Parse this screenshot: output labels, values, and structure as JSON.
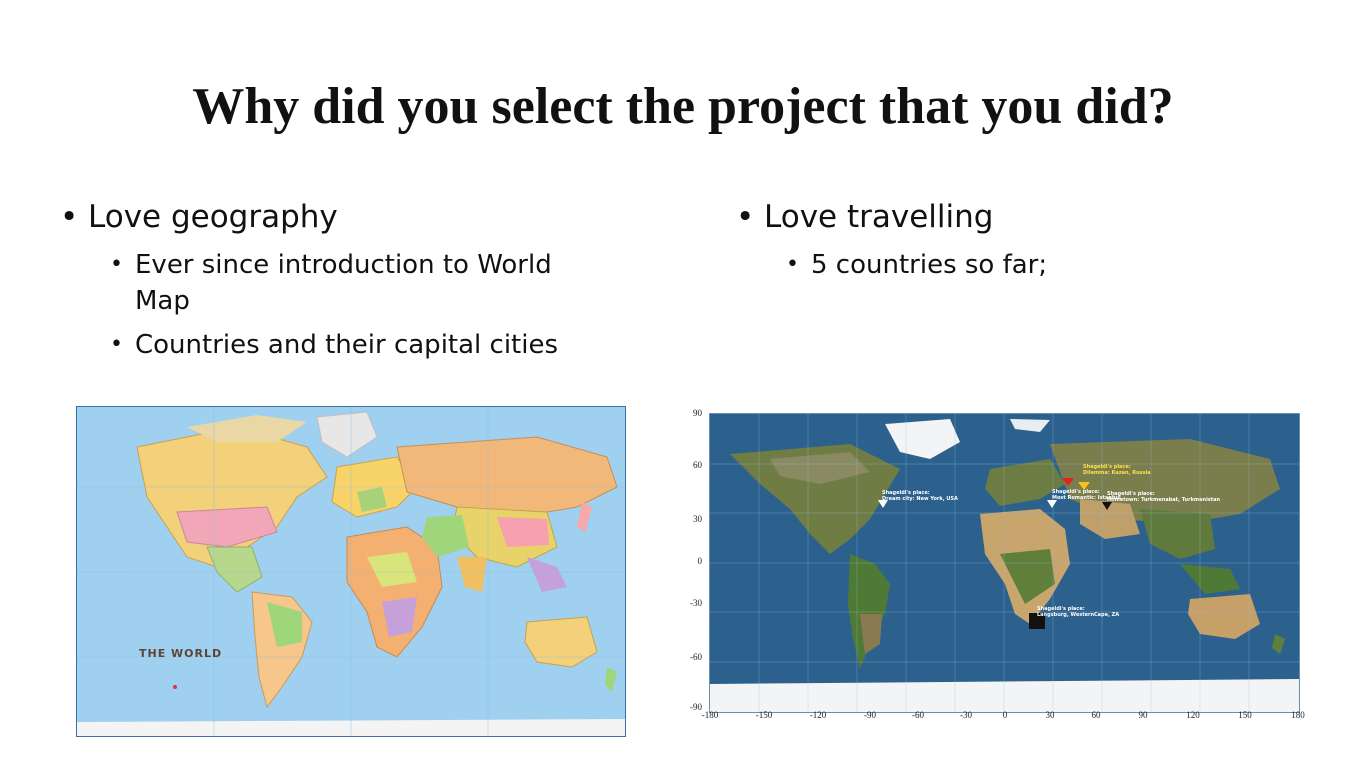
{
  "title": "Why did you select the project that you did?",
  "left_column": {
    "bullet": "Love geography",
    "sub_bullets": [
      "Ever since introduction to World Map",
      "Countries and their capital cities"
    ]
  },
  "right_column": {
    "bullet": "Love travelling",
    "sub_bullets": [
      "5 countries so far;"
    ]
  },
  "political_map": {
    "title": "THE WORLD",
    "icon": "world-political-map",
    "colors": {
      "ocean": "#9fd0ef",
      "accent": "#5b4636"
    }
  },
  "satellite_map": {
    "icon": "satellite-world-map",
    "y_ticks": [
      "90",
      "60",
      "30",
      "0",
      "-30",
      "-60",
      "-90"
    ],
    "x_ticks": [
      "-180",
      "-150",
      "-120",
      "-90",
      "-60",
      "-30",
      "0",
      "30",
      "60",
      "90",
      "120",
      "150",
      "180"
    ],
    "places": [
      {
        "line1": "Shageldi's place:",
        "line2": "Dream city: New York, USA"
      },
      {
        "line1": "Shageldi's place:",
        "line2": "Dilemma: Kazan, Russia"
      },
      {
        "line1": "Shageldi's place:",
        "line2": "Most Romantic: Istanbul"
      },
      {
        "line1": "Shageldi's place:",
        "line2": "Hometown: Turkmenabat, Turkmenistan"
      },
      {
        "line1": "Shageldi's place:",
        "line2": "Langsburg, WesternCape, ZA"
      }
    ],
    "colors": {
      "ocean": "#2a5b87",
      "land": "#6f7d45",
      "ice": "#f2f4f6",
      "grid": "#9cc0dc"
    }
  }
}
